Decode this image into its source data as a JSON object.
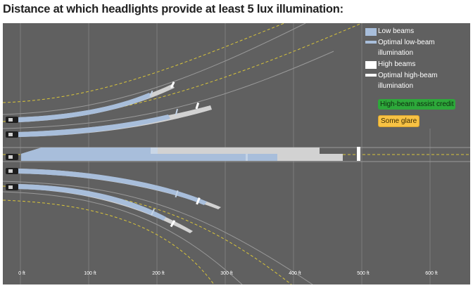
{
  "title": "Distance at which headlights provide at least 5 lux illumination:",
  "legend": {
    "low_beams": "Low beams",
    "optimal_low_line1": "Optimal low-beam",
    "optimal_low_line2": "illumination",
    "high_beams": "High beams",
    "optimal_high_line1": "Optimal high-beam",
    "optimal_high_line2": "illumination"
  },
  "badges": {
    "assist": "High-beam assist credit",
    "glare": "Some glare"
  },
  "axis": {
    "ticks": [
      "0 ft",
      "100 ft",
      "200 ft",
      "300 ft",
      "400 ft",
      "500 ft",
      "600 ft"
    ]
  },
  "colors": {
    "background": "#606060",
    "low_beam": "#a8bedb",
    "high_beam": "#d2d2d2",
    "optimal_high": "#ffffff",
    "lane_line": "#d9c53a",
    "assist_badge": "#2da83a",
    "glare_badge": "#f7c244"
  },
  "icons": {
    "vehicle": "car-top-view-icon"
  }
}
